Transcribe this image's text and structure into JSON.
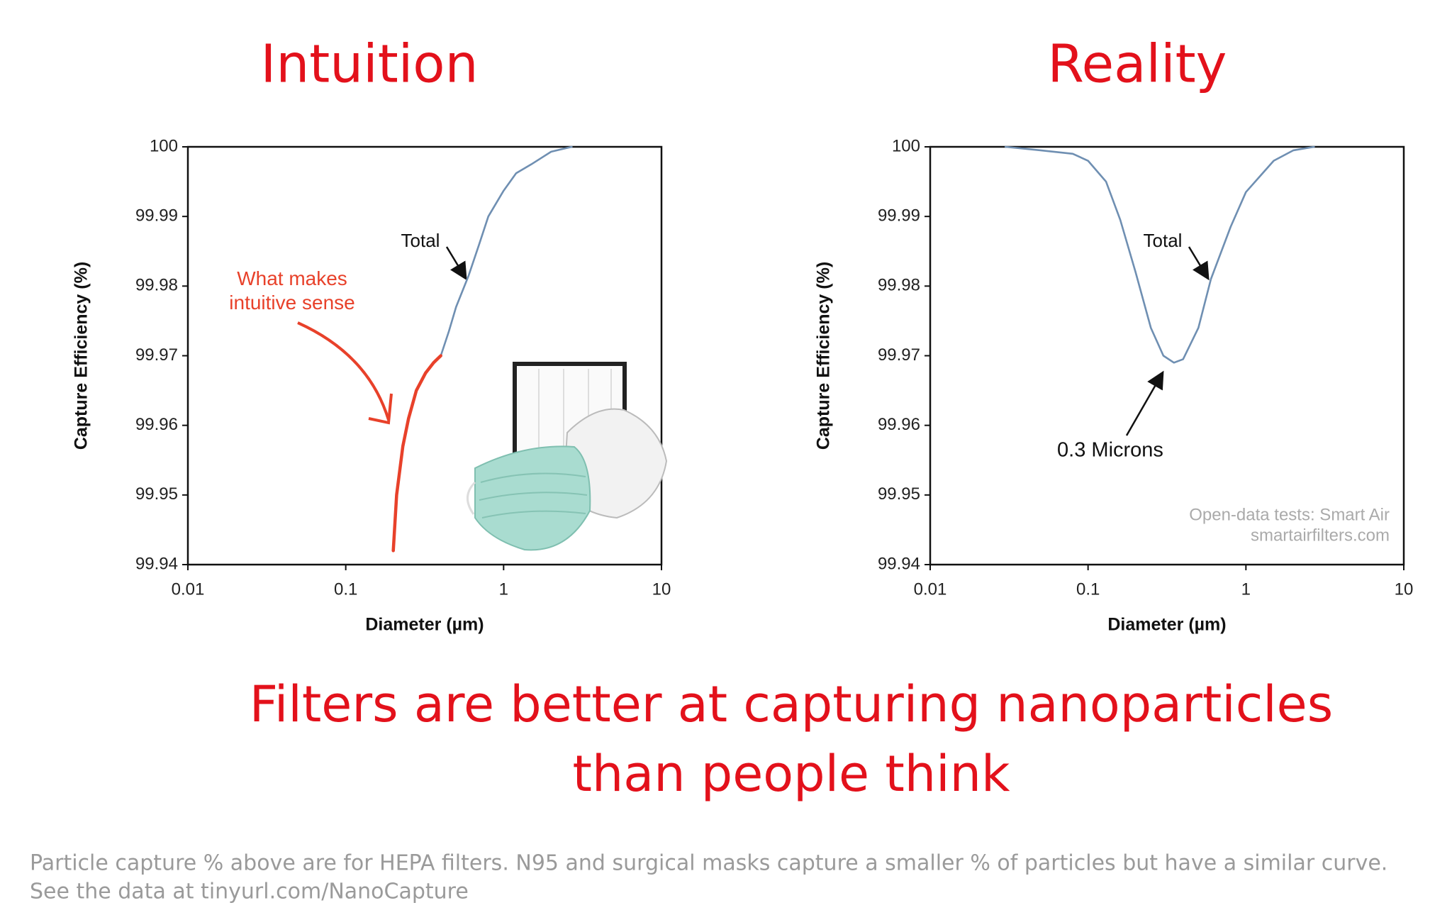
{
  "chart_data": [
    {
      "type": "line",
      "title": "Intuition",
      "xlabel": "Diameter (µm)",
      "ylabel": "Capture Efficiency (%)",
      "xscale": "log",
      "xlim": [
        0.01,
        10
      ],
      "xticks": [
        0.01,
        0.1,
        1,
        10
      ],
      "ylim": [
        99.94,
        100
      ],
      "yticks": [
        99.94,
        99.95,
        99.96,
        99.97,
        99.98,
        99.99,
        100
      ],
      "series": [
        {
          "name": "Total",
          "color": "#6f8fb2",
          "x": [
            0.4,
            0.45,
            0.5,
            0.6,
            0.7,
            0.8,
            1,
            1.2,
            1.5,
            2,
            2.7
          ],
          "values": [
            99.97,
            99.9735,
            99.977,
            99.9815,
            99.986,
            99.99,
            99.9937,
            99.9962,
            99.9975,
            99.9993,
            100
          ]
        },
        {
          "name": "What makes intuitive sense",
          "color": "#e8412a",
          "x": [
            0.2,
            0.21,
            0.23,
            0.25,
            0.28,
            0.32,
            0.36,
            0.4
          ],
          "values": [
            99.942,
            99.95,
            99.957,
            99.961,
            99.965,
            99.9675,
            99.969,
            99.97
          ]
        }
      ]
    },
    {
      "type": "line",
      "title": "Reality",
      "xlabel": "Diameter (µm)",
      "ylabel": "Capture Efficiency (%)",
      "xscale": "log",
      "xlim": [
        0.01,
        10
      ],
      "xticks": [
        0.01,
        0.1,
        1,
        10
      ],
      "ylim": [
        99.94,
        100
      ],
      "yticks": [
        99.94,
        99.95,
        99.96,
        99.97,
        99.98,
        99.99,
        100
      ],
      "annotations": [
        "0.3 Microns",
        "Open-data tests: Smart Air",
        "smartairfilters.com"
      ],
      "series": [
        {
          "name": "Total",
          "color": "#6f8fb2",
          "x": [
            0.03,
            0.05,
            0.08,
            0.1,
            0.13,
            0.16,
            0.2,
            0.25,
            0.3,
            0.35,
            0.4,
            0.5,
            0.6,
            0.8,
            1,
            1.5,
            2,
            2.7
          ],
          "values": [
            100,
            99.9995,
            99.999,
            99.998,
            99.995,
            99.9895,
            99.982,
            99.974,
            99.97,
            99.969,
            99.9695,
            99.974,
            99.981,
            99.9885,
            99.9935,
            99.998,
            99.9995,
            100
          ]
        }
      ]
    }
  ],
  "headline": [
    "Filters are better at capturing nanoparticles",
    "than people think"
  ],
  "footnote": [
    "Particle capture % above are for HEPA filters. N95 and surgical masks capture a smaller % of particles but have a similar curve.",
    "See the data at tinyurl.com/NanoCapture"
  ]
}
